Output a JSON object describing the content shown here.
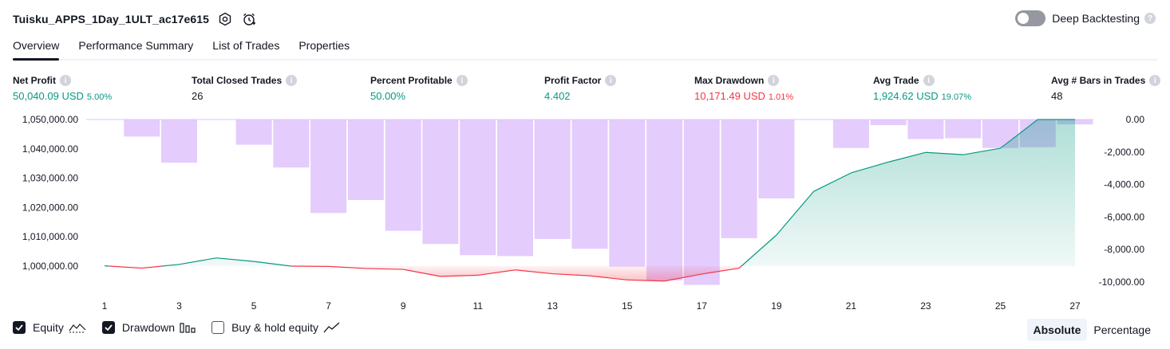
{
  "header": {
    "strategy_title": "Tuisku_APPS_1Day_1ULT_ac17e615",
    "deep_backtesting_label": "Deep Backtesting",
    "help_mark": "?"
  },
  "tabs": [
    {
      "label": "Overview"
    },
    {
      "label": "Performance Summary"
    },
    {
      "label": "List of Trades"
    },
    {
      "label": "Properties"
    }
  ],
  "metrics": {
    "net_profit": {
      "label": "Net Profit",
      "value": "50,040.09 USD",
      "pct": "5.00%"
    },
    "total_closed_trades": {
      "label": "Total Closed Trades",
      "value": "26"
    },
    "percent_profitable": {
      "label": "Percent Profitable",
      "value": "50.00%"
    },
    "profit_factor": {
      "label": "Profit Factor",
      "value": "4.402"
    },
    "max_drawdown": {
      "label": "Max Drawdown",
      "value": "10,171.49 USD",
      "pct": "1.01%"
    },
    "avg_trade": {
      "label": "Avg Trade",
      "value": "1,924.62 USD",
      "pct": "19.07%"
    },
    "avg_bars": {
      "label": "Avg # Bars in Trades",
      "value": "48"
    }
  },
  "legend": {
    "equity": "Equity",
    "drawdown": "Drawdown",
    "buy_hold": "Buy & hold equity"
  },
  "modes": {
    "absolute": "Absolute",
    "percentage": "Percentage"
  },
  "colors": {
    "profit": "#089981",
    "loss": "#f23645",
    "drawdown_bar": "#dfc3fd",
    "text": "#131722"
  },
  "chart_data": {
    "type": "line+bar",
    "x": [
      1,
      2,
      3,
      4,
      5,
      6,
      7,
      8,
      9,
      10,
      11,
      12,
      13,
      14,
      15,
      16,
      17,
      18,
      19,
      20,
      21,
      22,
      23,
      24,
      25,
      26,
      27
    ],
    "x_tick_labels": [
      "1",
      "3",
      "5",
      "7",
      "9",
      "11",
      "13",
      "15",
      "17",
      "19",
      "21",
      "23",
      "25",
      "27"
    ],
    "series": [
      {
        "name": "Equity",
        "axis": "left",
        "values": [
          1000100,
          999300,
          1000600,
          1002800,
          1001600,
          1000000,
          999900,
          999200,
          998900,
          996500,
          996900,
          998700,
          997400,
          996700,
          995300,
          994900,
          997300,
          999300,
          1010600,
          1025500,
          1031800,
          1035500,
          1038800,
          1038000,
          1040200,
          1050000,
          1050000
        ]
      },
      {
        "name": "Drawdown",
        "axis": "right",
        "values": [
          0,
          -1050,
          -2650,
          0,
          -1550,
          -2950,
          -5750,
          -4950,
          -6850,
          -7650,
          -8350,
          -8400,
          -7350,
          -7950,
          -9050,
          -9900,
          -10171.49,
          -7300,
          -4850,
          0,
          -1750,
          -350,
          -1200,
          -1150,
          -1750,
          -1700,
          -300
        ]
      }
    ],
    "y_left_ticks": [
      "1,050,000.00",
      "1,040,000.00",
      "1,030,000.00",
      "1,020,000.00",
      "1,010,000.00",
      "1,000,000.00"
    ],
    "y_left_tick_values": [
      1050000,
      1040000,
      1030000,
      1020000,
      1010000,
      1000000
    ],
    "y_right_ticks": [
      "0.00",
      "-2,000.00",
      "-4,000.00",
      "-6,000.00",
      "-8,000.00",
      "-10,000.00"
    ],
    "y_right_tick_values": [
      0,
      -2000,
      -4000,
      -6000,
      -8000,
      -10000
    ],
    "initial_capital": 1000000,
    "ylim_left": [
      995000,
      1050000
    ],
    "ylim_right": [
      -10500,
      0
    ]
  }
}
